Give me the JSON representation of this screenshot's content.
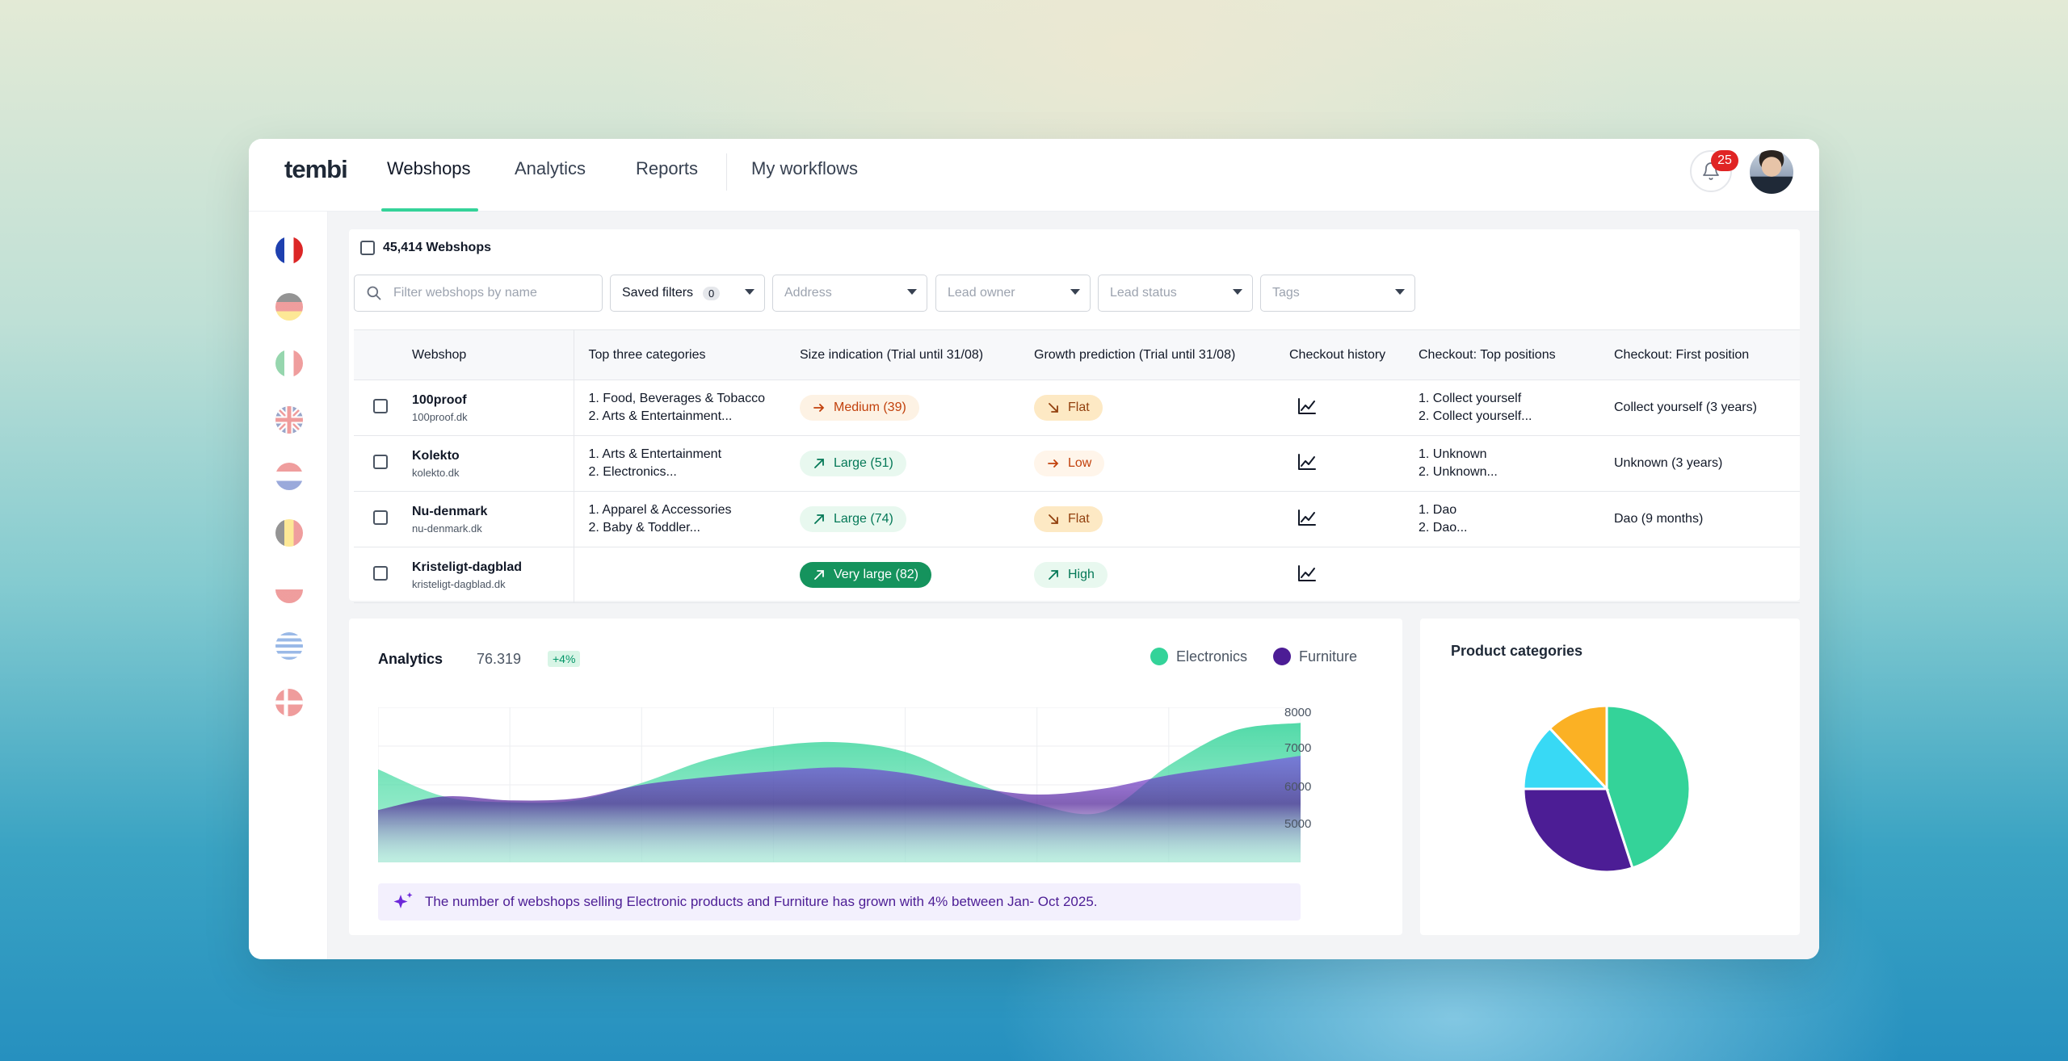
{
  "nav": {
    "logo": "tembi",
    "tabs": [
      {
        "label": "Webshops",
        "active": true
      },
      {
        "label": "Analytics",
        "active": false
      },
      {
        "label": "Reports",
        "active": false
      },
      {
        "label": "My workflows",
        "active": false
      }
    ],
    "notification_count": "25"
  },
  "sidebar": {
    "flags": [
      "France",
      "Germany",
      "Italy",
      "United Kingdom",
      "Netherlands",
      "Belgium",
      "Poland",
      "Greece",
      "Denmark"
    ]
  },
  "webshops": {
    "count_label": "45,414 Webshops",
    "search_placeholder": "Filter webshops by name",
    "filters": {
      "saved": "Saved filters",
      "saved_count": "0",
      "address": "Address",
      "lead_owner": "Lead owner",
      "lead_status": "Lead status",
      "tags": "Tags"
    },
    "columns": [
      "Webshop",
      "Top three categories",
      "Size indication (Trial until 31/08)",
      "Growth prediction (Trial until 31/08)",
      "Checkout history",
      "Checkout: Top positions",
      "Checkout: First position"
    ],
    "rows": [
      {
        "name": "100proof",
        "url": "100proof.dk",
        "cat1": "1. Food, Beverages & Tobacco",
        "cat2": "2. Arts & Entertainment...",
        "size": "Medium (39)",
        "growth": "Flat",
        "top1": "1. Collect yourself",
        "top2": "2. Collect yourself...",
        "first": "Collect yourself (3 years)"
      },
      {
        "name": "Kolekto",
        "url": "kolekto.dk",
        "cat1": "1. Arts & Entertainment",
        "cat2": "2. Electronics...",
        "size": "Large (51)",
        "growth": "Low",
        "top1": "1. Unknown",
        "top2": "2. Unknown...",
        "first": "Unknown (3 years)"
      },
      {
        "name": "Nu-denmark",
        "url": "nu-denmark.dk",
        "cat1": "1. Apparel & Accessories",
        "cat2": "2. Baby & Toddler...",
        "size": "Large (74)",
        "growth": "Flat",
        "top1": "1. Dao",
        "top2": "2. Dao...",
        "first": "Dao (9 months)"
      },
      {
        "name": "Kristeligt-dagblad",
        "url": "kristeligt-dagblad.dk",
        "cat1": "",
        "cat2": "",
        "size": "Very large (82)",
        "growth": "High",
        "top1": "",
        "top2": "",
        "first": ""
      }
    ]
  },
  "analytics": {
    "title": "Analytics",
    "value": "76.319",
    "delta": "+4%",
    "legend": [
      {
        "name": "Electronics",
        "color": "#34d399"
      },
      {
        "name": "Furniture",
        "color": "#4c1d95"
      }
    ],
    "yticks": [
      "8000",
      "7000",
      "6000",
      "5000"
    ],
    "insight": "The number of webshops selling Electronic products and Furniture has grown with 4% between Jan- Oct 2025."
  },
  "product_categories": {
    "title": "Product categories"
  },
  "chart_data": [
    {
      "type": "area",
      "title": "Analytics",
      "x": [
        0,
        1,
        2,
        3,
        4,
        5,
        6,
        7,
        8,
        9,
        10,
        11,
        12,
        13,
        14
      ],
      "series": [
        {
          "name": "Electronics",
          "color": "#34d399",
          "values": [
            6400,
            5700,
            5550,
            5600,
            6050,
            6650,
            7000,
            7100,
            6850,
            6100,
            5500,
            5300,
            6500,
            7400,
            7600
          ]
        },
        {
          "name": "Furniture",
          "color": "#4c1d95",
          "values": [
            5350,
            5700,
            5600,
            5650,
            6000,
            6200,
            6350,
            6450,
            6300,
            5950,
            5750,
            5900,
            6250,
            6500,
            6750
          ]
        }
      ],
      "ylim": [
        4000,
        8000
      ],
      "grid": true,
      "legend": "top-right"
    },
    {
      "type": "pie",
      "title": "Product categories",
      "slices": [
        {
          "value": 45,
          "color": "#34d399"
        },
        {
          "value": 30,
          "color": "#4c1d95"
        },
        {
          "value": 13,
          "color": "#38d9f5"
        },
        {
          "value": 12,
          "color": "#fbb124"
        }
      ]
    }
  ]
}
